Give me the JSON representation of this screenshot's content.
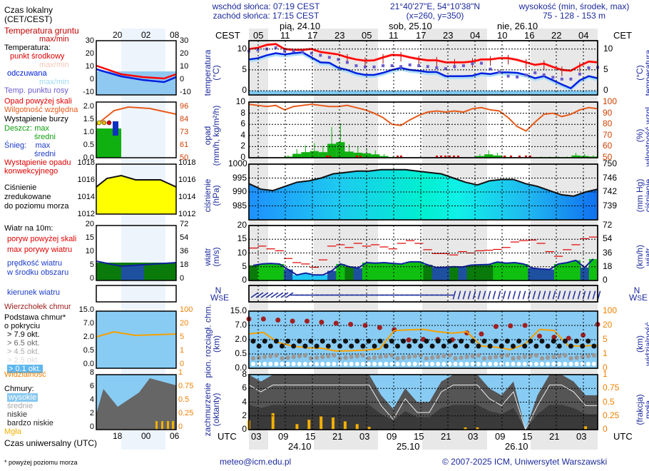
{
  "header": {
    "sunrise": "wschód słońca: 07:19 CEST",
    "sunset": "zachód słońca: 17:15 CEST",
    "coords": "21°40'27\"E, 54°10'38\"N",
    "grid": "(x=260,  y=350)",
    "elevation_title": "wysokość (min, środek, max)",
    "elevation_values": "75 - 128 - 153 m"
  },
  "time_axis": {
    "left_tz": "CEST",
    "right_tz": "CET",
    "local_hours": [
      "05",
      "11",
      "17",
      "23",
      "05",
      "11",
      "17",
      "23",
      "04",
      "10",
      "16",
      "22",
      "04"
    ],
    "days_top": [
      "pią, 24.10",
      "sob, 25.10",
      "nie, 26.10"
    ],
    "utc_label": "UTC",
    "utc_hours": [
      "03",
      "09",
      "15",
      "21",
      "03",
      "09",
      "15",
      "21",
      "03",
      "09",
      "15",
      "21",
      "03"
    ],
    "days_bottom": [
      "24.10",
      "25.10",
      "26.10"
    ]
  },
  "legend": {
    "local_time": "Czas lokalny",
    "local_time_sub": "(CET/CEST)",
    "local_ticks": [
      "20",
      "02",
      "08"
    ],
    "ground_temp": "Temperatura gruntu",
    "ground_temp_sub": "max/min",
    "temperature": "Temperatura:",
    "mid_point": "punkt środkowy",
    "maxmin1": "max/min",
    "feels_like": "odczuwana",
    "maxmin2": "max/min",
    "dew_point": "Temp. punktu rosy",
    "temp_ticks": [
      "30",
      "20",
      "10",
      "0",
      "-10"
    ],
    "precip_over": "Opad powyżej skali",
    "humidity": "Wilgotność względna",
    "storm": "Wystąpienie burzy",
    "rain": "Deszcz:",
    "rain_max": "max",
    "rain_mean": "średni",
    "snow": "Śnieg:",
    "snow_max": "max",
    "snow_mean": "średni",
    "convective": "Wystąpienie opadu",
    "convective2": "konwekcyjnego",
    "precip_ticks": [
      "2.0",
      "1.5",
      "1.0",
      "0.5",
      "0.0"
    ],
    "hum_ticks": [
      "96",
      "84",
      "73",
      "61",
      "50"
    ],
    "pressure1": "Ciśnienie",
    "pressure2": "zredukowane",
    "pressure3": "do poziomu morza",
    "press_ticks": [
      "1018",
      "1016",
      "1014",
      "1012"
    ],
    "wind10": "Wiatr na 10m:",
    "gust_over": "poryw powyżej skali",
    "gust_max": "max porywy wiatru",
    "wind_speed1": "prędkość wiatru",
    "wind_speed2": "w środku obszaru",
    "wind_ticks": [
      "20",
      "15",
      "10",
      "5",
      "0"
    ],
    "wind_kmh_ticks": [
      "72",
      "54",
      "36",
      "18",
      "0"
    ],
    "wind_dir": "kierunek wiatru",
    "cloud_top": "Wierzchołek chmur",
    "cloud_base": "Podstawa chmur*",
    "cloud_cover": "o pokryciu",
    "okt79": "> 7.9 okt.",
    "okt65": "> 6.5 okt.",
    "okt45": "> 4.5 okt.",
    "okt25": "> 2.5 okt.",
    "okt01": "> 0.1 okt.",
    "cloud_ticks": [
      "15.0",
      "7.0",
      "2.0",
      "0.5",
      "0.0"
    ],
    "vis_ticks": [
      "100",
      "20",
      "5",
      "1",
      "0"
    ],
    "visibility": "Widzialność",
    "clouds": "Chmury:",
    "high": "wysokie",
    "mid": "średnie",
    "low": "niskie",
    "very_low": "bardzo niskie",
    "fog": "Mgła",
    "okta_ticks": [
      "8",
      "6",
      "4",
      "2",
      "0"
    ],
    "fog_ticks": [
      "1",
      "0.75",
      "0.5",
      "0.25",
      "0"
    ],
    "utc_ticks": [
      "18",
      "00",
      "06"
    ],
    "utc_label": "Czas uniwersalny (UTC)",
    "footnote": "* powyżej poziomu morza"
  },
  "footer": {
    "email": "meteo@icm.edu.pl",
    "copyright": "© 2007-2025 ICM, Uniwersytet Warszawski"
  },
  "colors": {
    "navy": "#1c2a9c",
    "temp_red": "#ff0000",
    "feels_blue": "#0020e0",
    "dew": "#6a5acd",
    "humidity": "#e85a1a",
    "rain": "#10b010",
    "visibility": "#f5a000",
    "cloud_top": "#a02020"
  },
  "chart_data": [
    {
      "type": "line",
      "title": "temperatura",
      "ylabel": "temperatura (°C)",
      "ylim": [
        -1,
        12
      ],
      "yticks": [
        "10",
        "5",
        "0"
      ],
      "series": [
        {
          "name": "punkt środkowy",
          "values": [
            10,
            10.3,
            11,
            11.2,
            10,
            9.8,
            9.8,
            10,
            9.3,
            9,
            8.7,
            8,
            7.5,
            7.2,
            7.3,
            8,
            8.6,
            8.5,
            8,
            7.6,
            7.3,
            7.3,
            6.8,
            6.8,
            6.8,
            7,
            7.5,
            7.5,
            7.8,
            7.8,
            7.4,
            6.8,
            6.2,
            6.5,
            5.7,
            5,
            4.8,
            6,
            7,
            6.8
          ]
        },
        {
          "name": "odczuwana",
          "values": [
            7.5,
            7.8,
            8.5,
            9,
            8.7,
            9,
            9.2,
            8,
            6.8,
            6.7,
            5.5,
            5,
            4.2,
            3.8,
            3.8,
            4.3,
            5,
            5.5,
            5,
            4.8,
            4.5,
            4.5,
            3.5,
            3.5,
            3.5,
            3.6,
            4.2,
            4,
            4.4,
            4.4,
            4.3,
            3.8,
            3,
            3.5,
            2.5,
            1.5,
            0.6,
            2.5,
            3.5,
            3
          ]
        },
        {
          "name": "punkt rosy",
          "values": [
            9.5,
            9.8,
            10,
            10.3,
            9.5,
            9.5,
            9.3,
            9,
            8.5,
            8,
            7.5,
            6.8,
            6,
            5.7,
            5.7,
            6,
            6,
            5.8,
            6.2,
            6,
            5.8,
            5.5,
            5.3,
            5.8,
            6,
            6.5,
            6.6,
            5.2,
            4.5,
            3.5,
            3.3,
            3.8,
            4.3,
            3.8,
            3.2,
            2.8,
            2.8,
            4,
            5.5,
            5.6
          ]
        }
      ]
    },
    {
      "type": "bar",
      "title": "opad / wilgotność",
      "ylabel": "opad (mm/h, kg/m²/h)",
      "ylim": [
        0,
        10
      ],
      "yticks": [
        "10",
        "8",
        "6",
        "4",
        "2",
        "0"
      ],
      "y2label": "wilgotność wzgl. (%)",
      "y2lim": [
        50,
        100
      ],
      "y2ticks": [
        "100",
        "90",
        "80",
        "70",
        "60",
        "50"
      ],
      "series": [
        {
          "name": "opad średni",
          "values": [
            0,
            0,
            0,
            0,
            0.2,
            0.7,
            1,
            1.2,
            1,
            2.5,
            2.8,
            1.1,
            0.9,
            0.8,
            0.6,
            0.3,
            0.1,
            0,
            0,
            0,
            0,
            0,
            0,
            0,
            0,
            0,
            0.3,
            0.6,
            0.4,
            0.1,
            0,
            0,
            0,
            0.1,
            0.1,
            0.1,
            0.1,
            0.4,
            0.3,
            0.2
          ]
        },
        {
          "name": "wilgotność",
          "values": [
            98,
            97,
            96,
            97,
            93,
            96,
            97,
            98,
            97,
            96,
            96,
            97,
            95,
            93,
            90,
            86,
            80,
            79,
            84,
            88,
            91,
            92,
            91,
            92,
            91,
            94,
            95,
            93,
            92,
            86,
            78,
            74,
            82,
            89,
            90,
            87,
            89,
            93,
            95,
            94
          ]
        }
      ]
    },
    {
      "type": "area",
      "title": "ciśnienie",
      "ylabel": "ciśnienie (hPa)",
      "ylim": [
        980,
        1000
      ],
      "yticks": [
        "1000",
        "995",
        "990",
        "985"
      ],
      "y2label": "ciśnienie (mm Hg)",
      "y2ticks": [
        "750",
        "746",
        "742",
        "739"
      ],
      "values": [
        993,
        991,
        990.5,
        992,
        993.5,
        994,
        995,
        996.5,
        997,
        997.5,
        997.5,
        998,
        998,
        998,
        997.5,
        997,
        996.5,
        995,
        993.5,
        992.5,
        994,
        994.5,
        994.5,
        993,
        992,
        990.5,
        989,
        988.5,
        990,
        991
      ]
    },
    {
      "type": "area",
      "title": "wiatr",
      "ylabel": "wiatr (m/s)",
      "ylim": [
        0,
        20
      ],
      "yticks": [
        "20",
        "15",
        "10",
        "5",
        "0"
      ],
      "y2label": "wiatr (km/h)",
      "y2ticks": [
        "72",
        "54",
        "36",
        "18",
        "0"
      ],
      "series": [
        {
          "name": "prędkość",
          "values": [
            5.5,
            6,
            6.2,
            6,
            4,
            2,
            2.7,
            2,
            2,
            3.5,
            6,
            5,
            4.5,
            6.5,
            6.3,
            6.5,
            6.2,
            6,
            6.8,
            6.8,
            5.7,
            4.7,
            4.8,
            5,
            4.9,
            5.6,
            5.7,
            5.8,
            6.7,
            6.3,
            6.5,
            6,
            4.5,
            4.2,
            4,
            6,
            6.5,
            7.3,
            4.7,
            7.8
          ]
        },
        {
          "name": "max porywy",
          "values": [
            11.8,
            12.5,
            11.5,
            10.8,
            8,
            6.5,
            6,
            4.8,
            7.5,
            12.5,
            13,
            12,
            13.5,
            12.5,
            13,
            12.2,
            11.5,
            13.5,
            14.5,
            13.5,
            11.2,
            9.8,
            9.8,
            9.3,
            10.5,
            10,
            10.8,
            11,
            11.3,
            12,
            14,
            14.5,
            14.7,
            13.5,
            10.5,
            8.8,
            11.2,
            13,
            15.2,
            15.8
          ]
        }
      ]
    },
    {
      "type": "scatter",
      "title": "pion. rozciągł. chm.",
      "ylabel": "pion. rozciągł. chm. (km)",
      "yticks": [
        "15.0",
        "7.0",
        "2.0",
        "0.5",
        "0.0"
      ],
      "y2label": "widzialność (km)",
      "y2ticks": [
        "100",
        "20",
        "5",
        "1",
        "0"
      ],
      "series": [
        {
          "name": "wierzchołek chmur",
          "values": [
            12,
            12,
            11.5,
            11,
            11,
            10.5,
            10,
            9.5,
            9,
            8,
            7,
            2.2,
            2.5,
            2.4,
            2.3,
            5.5,
            5,
            8.5,
            8.8,
            9,
            4,
            3.5,
            3,
            4.5,
            9.5
          ]
        },
        {
          "name": "widzialność",
          "values": [
            15,
            17,
            7,
            5,
            4.2,
            4,
            3,
            3.1,
            3.3,
            3.8,
            20,
            21,
            22,
            18,
            16,
            18,
            5,
            4.5,
            3.5,
            6,
            22,
            20,
            5,
            5,
            5.5
          ]
        }
      ]
    },
    {
      "type": "area",
      "title": "zachmurzenie / mgła",
      "ylabel": "zachmurzenie (oktanty)",
      "ylim": [
        0,
        8
      ],
      "yticks": [
        "8",
        "6",
        "4",
        "2",
        "0"
      ],
      "y2label": "mgła (frakcja)",
      "y2lim": [
        0,
        1
      ],
      "y2ticks": [
        "1",
        "0.75",
        "0.5",
        "0.25",
        "0"
      ],
      "series": [
        {
          "name": "całkowite",
          "values": [
            8,
            7,
            8,
            8,
            8,
            8,
            8,
            8,
            8,
            8,
            8,
            5,
            3,
            6,
            4,
            4,
            7,
            8,
            8,
            8,
            6,
            5,
            7,
            0,
            5,
            8,
            8,
            7,
            5,
            5
          ]
        },
        {
          "name": "mgła",
          "values": [
            0.17,
            0,
            0.3,
            0,
            0.1,
            0.18,
            0.24,
            0.22,
            0.15,
            0.1,
            0.05,
            0,
            0,
            0,
            0,
            0,
            0,
            0,
            0.04,
            0.04,
            0,
            0,
            0,
            0,
            0,
            0,
            0,
            0,
            0.06,
            0
          ]
        }
      ]
    }
  ]
}
